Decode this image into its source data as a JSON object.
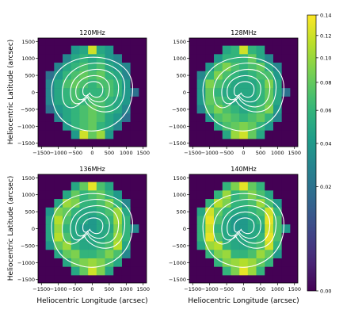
{
  "chart_data": {
    "type": "heatmap",
    "xlabel": "Heliocentric Longitude (arcsec)",
    "ylabel": "Heliocentric Latitude (arcsec)",
    "xlim": [
      -1600,
      1600
    ],
    "ylim": [
      -1600,
      1600
    ],
    "xticks": [
      -1500,
      -1000,
      -500,
      0,
      500,
      1000,
      1500
    ],
    "xtick_labels": [
      "−1500",
      "−1000",
      "−500",
      "0",
      "500",
      "1000",
      "1500"
    ],
    "yticks": [
      -1500,
      -1000,
      -500,
      0,
      500,
      1000,
      1500
    ],
    "ytick_labels": [
      "−1500",
      "−1000",
      "−500",
      "0",
      "500",
      "1000",
      "1500"
    ],
    "grid": false,
    "cell_size": 250,
    "panels": [
      {
        "title": "120MHz",
        "cells": [
          [
            0,
            0,
            0,
            0,
            0,
            0,
            0,
            0,
            0,
            0,
            0,
            0,
            0
          ],
          [
            0,
            0,
            0,
            0,
            0.04,
            0.05,
            0.12,
            0.05,
            0.04,
            0,
            0,
            0,
            0
          ],
          [
            0,
            0,
            0,
            0.03,
            0.05,
            0.06,
            0.05,
            0.06,
            0.04,
            0.03,
            0,
            0,
            0
          ],
          [
            0,
            0,
            0.03,
            0.05,
            0.06,
            0.07,
            0.06,
            0.07,
            0.05,
            0.04,
            0.03,
            0,
            0
          ],
          [
            0,
            0.02,
            0.04,
            0.06,
            0.07,
            0.08,
            0.07,
            0.08,
            0.06,
            0.05,
            0.03,
            0,
            0
          ],
          [
            0,
            0.03,
            0.05,
            0.07,
            0.08,
            0.07,
            0.06,
            0.07,
            0.07,
            0.06,
            0.04,
            0,
            0
          ],
          [
            0,
            0.03,
            0.05,
            0.06,
            0.07,
            0.06,
            0.06,
            0.06,
            0.07,
            0.06,
            0.04,
            0.02,
            0
          ],
          [
            0,
            0.03,
            0.05,
            0.06,
            0.07,
            0.06,
            0.07,
            0.07,
            0.06,
            0.05,
            0.04,
            0,
            0
          ],
          [
            0,
            0.02,
            0.04,
            0.05,
            0.06,
            0.07,
            0.08,
            0.07,
            0.06,
            0.05,
            0.03,
            0,
            0
          ],
          [
            0,
            0,
            0.03,
            0.05,
            0.06,
            0.07,
            0.08,
            0.07,
            0.05,
            0.04,
            0.02,
            0,
            0
          ],
          [
            0,
            0,
            0,
            0.04,
            0.06,
            0.07,
            0.08,
            0.06,
            0.05,
            0.03,
            0,
            0,
            0
          ],
          [
            0,
            0,
            0,
            0,
            0.04,
            0.12,
            0.08,
            0.1,
            0.04,
            0,
            0,
            0,
            0
          ],
          [
            0,
            0,
            0,
            0,
            0,
            0,
            0,
            0,
            0,
            0,
            0,
            0,
            0
          ]
        ]
      },
      {
        "title": "128MHz",
        "cells": [
          [
            0,
            0,
            0,
            0,
            0,
            0,
            0,
            0,
            0,
            0,
            0,
            0,
            0
          ],
          [
            0,
            0,
            0,
            0,
            0.05,
            0.06,
            0.12,
            0.06,
            0.05,
            0,
            0,
            0,
            0
          ],
          [
            0,
            0,
            0,
            0.04,
            0.06,
            0.06,
            0.06,
            0.08,
            0.05,
            0.03,
            0,
            0,
            0
          ],
          [
            0,
            0,
            0.04,
            0.07,
            0.09,
            0.07,
            0.06,
            0.07,
            0.08,
            0.05,
            0.03,
            0,
            0
          ],
          [
            0,
            0.03,
            0.06,
            0.09,
            0.07,
            0.06,
            0.05,
            0.06,
            0.07,
            0.07,
            0.04,
            0,
            0
          ],
          [
            0,
            0.04,
            0.09,
            0.07,
            0.06,
            0.05,
            0.05,
            0.05,
            0.06,
            0.09,
            0.05,
            0,
            0
          ],
          [
            0,
            0.04,
            0.08,
            0.06,
            0.05,
            0.05,
            0.05,
            0.05,
            0.06,
            0.08,
            0.05,
            0.02,
            0
          ],
          [
            0,
            0.04,
            0.08,
            0.07,
            0.06,
            0.05,
            0.05,
            0.05,
            0.06,
            0.08,
            0.05,
            0,
            0
          ],
          [
            0,
            0.03,
            0.07,
            0.09,
            0.07,
            0.06,
            0.05,
            0.06,
            0.07,
            0.09,
            0.04,
            0,
            0
          ],
          [
            0,
            0,
            0.04,
            0.07,
            0.08,
            0.07,
            0.06,
            0.07,
            0.08,
            0.06,
            0.03,
            0,
            0
          ],
          [
            0,
            0,
            0,
            0.05,
            0.07,
            0.08,
            0.09,
            0.08,
            0.06,
            0.04,
            0,
            0,
            0
          ],
          [
            0,
            0,
            0,
            0,
            0.05,
            0.1,
            0.12,
            0.08,
            0.05,
            0,
            0,
            0,
            0
          ],
          [
            0,
            0,
            0,
            0,
            0,
            0,
            0,
            0,
            0,
            0,
            0,
            0,
            0
          ]
        ]
      },
      {
        "title": "136MHz",
        "cells": [
          [
            0,
            0,
            0,
            0,
            0,
            0,
            0,
            0,
            0,
            0,
            0,
            0,
            0
          ],
          [
            0,
            0,
            0,
            0,
            0.05,
            0.08,
            0.13,
            0.07,
            0.05,
            0,
            0,
            0,
            0
          ],
          [
            0,
            0,
            0,
            0.05,
            0.08,
            0.06,
            0.07,
            0.08,
            0.06,
            0.04,
            0,
            0,
            0
          ],
          [
            0,
            0,
            0.05,
            0.1,
            0.09,
            0.06,
            0.06,
            0.07,
            0.09,
            0.06,
            0.03,
            0,
            0
          ],
          [
            0,
            0.04,
            0.09,
            0.08,
            0.06,
            0.05,
            0.05,
            0.06,
            0.07,
            0.1,
            0.05,
            0,
            0
          ],
          [
            0,
            0.05,
            0.11,
            0.07,
            0.05,
            0.05,
            0.04,
            0.05,
            0.06,
            0.1,
            0.06,
            0,
            0
          ],
          [
            0,
            0.05,
            0.1,
            0.06,
            0.05,
            0.04,
            0.04,
            0.05,
            0.05,
            0.09,
            0.06,
            0.03,
            0
          ],
          [
            0,
            0.05,
            0.11,
            0.07,
            0.05,
            0.05,
            0.05,
            0.05,
            0.06,
            0.1,
            0.06,
            0,
            0
          ],
          [
            0,
            0.04,
            0.08,
            0.1,
            0.06,
            0.05,
            0.05,
            0.06,
            0.07,
            0.11,
            0.05,
            0,
            0
          ],
          [
            0,
            0,
            0.05,
            0.08,
            0.09,
            0.06,
            0.06,
            0.07,
            0.09,
            0.07,
            0.03,
            0,
            0
          ],
          [
            0,
            0,
            0,
            0.05,
            0.08,
            0.09,
            0.1,
            0.09,
            0.07,
            0.05,
            0,
            0,
            0
          ],
          [
            0,
            0,
            0,
            0,
            0.05,
            0.08,
            0.12,
            0.09,
            0.05,
            0,
            0,
            0,
            0
          ],
          [
            0,
            0,
            0,
            0,
            0,
            0,
            0,
            0,
            0,
            0,
            0,
            0,
            0
          ]
        ]
      },
      {
        "title": "140MHz",
        "cells": [
          [
            0,
            0,
            0,
            0,
            0,
            0,
            0,
            0,
            0,
            0,
            0,
            0,
            0
          ],
          [
            0,
            0,
            0,
            0,
            0.06,
            0.09,
            0.13,
            0.08,
            0.06,
            0,
            0,
            0,
            0
          ],
          [
            0,
            0,
            0,
            0.06,
            0.1,
            0.06,
            0.07,
            0.09,
            0.07,
            0.05,
            0,
            0,
            0
          ],
          [
            0,
            0,
            0.06,
            0.11,
            0.09,
            0.06,
            0.06,
            0.07,
            0.1,
            0.07,
            0.04,
            0,
            0
          ],
          [
            0,
            0.05,
            0.12,
            0.08,
            0.06,
            0.05,
            0.05,
            0.06,
            0.07,
            0.12,
            0.06,
            0,
            0
          ],
          [
            0,
            0.06,
            0.13,
            0.07,
            0.05,
            0.04,
            0.04,
            0.05,
            0.06,
            0.13,
            0.07,
            0,
            0
          ],
          [
            0,
            0.06,
            0.12,
            0.06,
            0.05,
            0.04,
            0.04,
            0.05,
            0.05,
            0.12,
            0.07,
            0.04,
            0
          ],
          [
            0,
            0.06,
            0.13,
            0.07,
            0.05,
            0.05,
            0.05,
            0.05,
            0.06,
            0.13,
            0.07,
            0,
            0
          ],
          [
            0,
            0.05,
            0.1,
            0.11,
            0.06,
            0.05,
            0.05,
            0.06,
            0.07,
            0.12,
            0.06,
            0,
            0
          ],
          [
            0,
            0,
            0.06,
            0.09,
            0.1,
            0.06,
            0.06,
            0.07,
            0.1,
            0.08,
            0.04,
            0,
            0
          ],
          [
            0,
            0,
            0,
            0.06,
            0.09,
            0.1,
            0.11,
            0.1,
            0.08,
            0.06,
            0,
            0,
            0
          ],
          [
            0,
            0,
            0,
            0,
            0.06,
            0.09,
            0.13,
            0.1,
            0.06,
            0,
            0,
            0,
            0
          ],
          [
            0,
            0,
            0,
            0,
            0,
            0,
            0,
            0,
            0,
            0,
            0,
            0,
            0
          ]
        ]
      }
    ],
    "colorbar": {
      "ticks": [
        0.0,
        0.02,
        0.04,
        0.06,
        0.08,
        0.1,
        0.12,
        0.14
      ],
      "tick_labels": [
        "0.00",
        "0.02",
        "0.04",
        "0.06",
        "0.08",
        "0.10",
        "0.12",
        "0.14"
      ],
      "range": [
        0,
        0.14
      ],
      "colormap": "viridis"
    },
    "contour_color": "#ffffff"
  },
  "colors": {
    "viridis": [
      "#440154",
      "#482878",
      "#3e4989",
      "#31688e",
      "#26828e",
      "#1f9e89",
      "#35b779",
      "#6ece58",
      "#b5de2b",
      "#fde725"
    ]
  }
}
